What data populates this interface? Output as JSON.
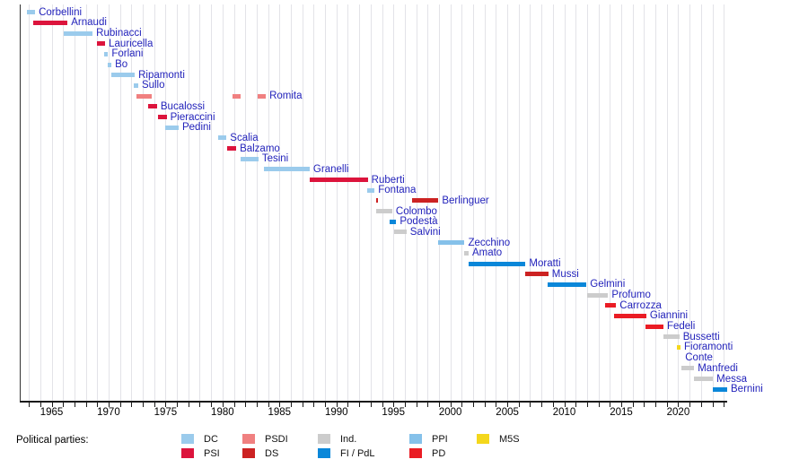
{
  "chart_data": {
    "type": "gantt",
    "description": "Timeline of officeholders (Italian ministers) by political party",
    "x_axis": {
      "unit": "year",
      "range": [
        1962.2,
        2024.3
      ],
      "gridline_years": [
        1963,
        2024
      ],
      "tick_years": [
        1963,
        2024
      ],
      "labeled_ticks": [
        1965,
        1970,
        1975,
        1980,
        1985,
        1990,
        1995,
        2000,
        2005,
        2010,
        2015,
        2020
      ],
      "gridlines": true
    },
    "parties": {
      "DC": "#9bcbec",
      "PSI": "#dc143c",
      "PSDI": "#f08080",
      "DS": "#cc2222",
      "Ind.": "#cccccc",
      "FI / PdL": "#0a87d9",
      "PPI": "#85c1ea",
      "PD": "#ea1c24",
      "M5S": "#f4d71c"
    },
    "rows": [
      {
        "name": "Corbellini",
        "party": "DC",
        "terms": [
          [
            1962.85,
            1963.55
          ]
        ]
      },
      {
        "name": "Arnaudi",
        "party": "PSI",
        "terms": [
          [
            1963.35,
            1966.4
          ]
        ]
      },
      {
        "name": "Rubinacci",
        "party": "DC",
        "terms": [
          [
            1966.05,
            1968.6
          ]
        ]
      },
      {
        "name": "Lauricella",
        "party": "PSI",
        "terms": [
          [
            1969.0,
            1969.7
          ]
        ]
      },
      {
        "name": "Forlani",
        "party": "DC",
        "terms": [
          [
            1969.6,
            1969.95
          ]
        ]
      },
      {
        "name": "Bo",
        "party": "DC",
        "terms": [
          [
            1969.9,
            1970.25
          ]
        ]
      },
      {
        "name": "Ripamonti",
        "party": "DC",
        "terms": [
          [
            1970.25,
            1972.3
          ]
        ]
      },
      {
        "name": "Sullo",
        "party": "DC",
        "terms": [
          [
            1972.2,
            1972.6
          ]
        ]
      },
      {
        "name": "Romita",
        "party": "PSDI",
        "terms": [
          [
            1972.45,
            1973.75
          ],
          [
            1980.85,
            1981.55
          ],
          [
            1983.05,
            1983.8
          ]
        ]
      },
      {
        "name": "Bucalossi",
        "party": "PSI",
        "terms": [
          [
            1973.5,
            1974.25
          ]
        ]
      },
      {
        "name": "Pieraccini",
        "party": "PSI",
        "terms": [
          [
            1974.35,
            1975.1
          ]
        ]
      },
      {
        "name": "Pedini",
        "party": "DC",
        "terms": [
          [
            1975.0,
            1976.15
          ]
        ]
      },
      {
        "name": "Scalia",
        "party": "DC",
        "terms": [
          [
            1979.6,
            1980.35
          ]
        ]
      },
      {
        "name": "Balzamo",
        "party": "PSI",
        "terms": [
          [
            1980.4,
            1981.2
          ]
        ]
      },
      {
        "name": "Tesini",
        "party": "DC",
        "terms": [
          [
            1981.55,
            1983.15
          ]
        ]
      },
      {
        "name": "Granelli",
        "party": "DC",
        "terms": [
          [
            1983.6,
            1987.65
          ]
        ]
      },
      {
        "name": "Ruberti",
        "party": "PSI",
        "terms": [
          [
            1987.65,
            1992.75
          ]
        ]
      },
      {
        "name": "Fontana",
        "party": "DC",
        "terms": [
          [
            1992.7,
            1993.35
          ]
        ]
      },
      {
        "name": "Berlinguer",
        "party": "DS",
        "terms": [
          [
            1993.45,
            1993.6
          ],
          [
            1996.6,
            1998.95
          ]
        ]
      },
      {
        "name": "Colombo",
        "party": "Ind.",
        "terms": [
          [
            1993.5,
            1994.9
          ]
        ]
      },
      {
        "name": "Podestà",
        "party": "FI / PdL",
        "terms": [
          [
            1994.7,
            1995.25
          ]
        ]
      },
      {
        "name": "Salvini",
        "party": "Ind.",
        "terms": [
          [
            1995.1,
            1996.15
          ]
        ]
      },
      {
        "name": "Zecchino",
        "party": "PPI",
        "terms": [
          [
            1998.95,
            2001.25
          ]
        ]
      },
      {
        "name": "Amato",
        "party": "Ind.",
        "terms": [
          [
            2001.2,
            2001.6
          ]
        ]
      },
      {
        "name": "Moratti",
        "party": "FI / PdL",
        "terms": [
          [
            2001.6,
            2006.6
          ]
        ]
      },
      {
        "name": "Mussi",
        "party": "DS",
        "terms": [
          [
            2006.55,
            2008.6
          ]
        ]
      },
      {
        "name": "Gelmini",
        "party": "FI / PdL",
        "terms": [
          [
            2008.5,
            2011.95
          ]
        ]
      },
      {
        "name": "Profumo",
        "party": "Ind.",
        "terms": [
          [
            2012.0,
            2013.85
          ]
        ]
      },
      {
        "name": "Carrozza",
        "party": "PD",
        "terms": [
          [
            2013.6,
            2014.55
          ]
        ]
      },
      {
        "name": "Giannini",
        "party": "PD",
        "terms": [
          [
            2014.4,
            2017.2
          ]
        ]
      },
      {
        "name": "Fedeli",
        "party": "PD",
        "terms": [
          [
            2017.1,
            2018.7
          ]
        ]
      },
      {
        "name": "Bussetti",
        "party": "Ind.",
        "terms": [
          [
            2018.7,
            2020.1
          ]
        ]
      },
      {
        "name": "Fioramonti",
        "party": "M5S",
        "terms": [
          [
            2019.85,
            2020.2
          ]
        ]
      },
      {
        "name": "Conte",
        "party": null,
        "terms": [],
        "label_year": 2020.3
      },
      {
        "name": "Manfredi",
        "party": "Ind.",
        "terms": [
          [
            2020.25,
            2021.4
          ]
        ]
      },
      {
        "name": "Messa",
        "party": "Ind.",
        "terms": [
          [
            2021.35,
            2023.05
          ]
        ]
      },
      {
        "name": "Bernini",
        "party": "FI / PdL",
        "terms": [
          [
            2023.05,
            2024.3
          ]
        ]
      }
    ],
    "legend": {
      "title": "Political parties:",
      "entries": [
        {
          "label": "DC",
          "party": "DC"
        },
        {
          "label": "PSI",
          "party": "PSI"
        },
        {
          "label": "PSDI",
          "party": "PSDI"
        },
        {
          "label": "DS",
          "party": "DS"
        },
        {
          "label": "Ind.",
          "party": "Ind."
        },
        {
          "label": "FI / PdL",
          "party": "FI / PdL"
        },
        {
          "label": "PPI",
          "party": "PPI"
        },
        {
          "label": "PD",
          "party": "PD"
        },
        {
          "label": "M5S",
          "party": "M5S"
        }
      ],
      "position": "bottom-left"
    }
  }
}
